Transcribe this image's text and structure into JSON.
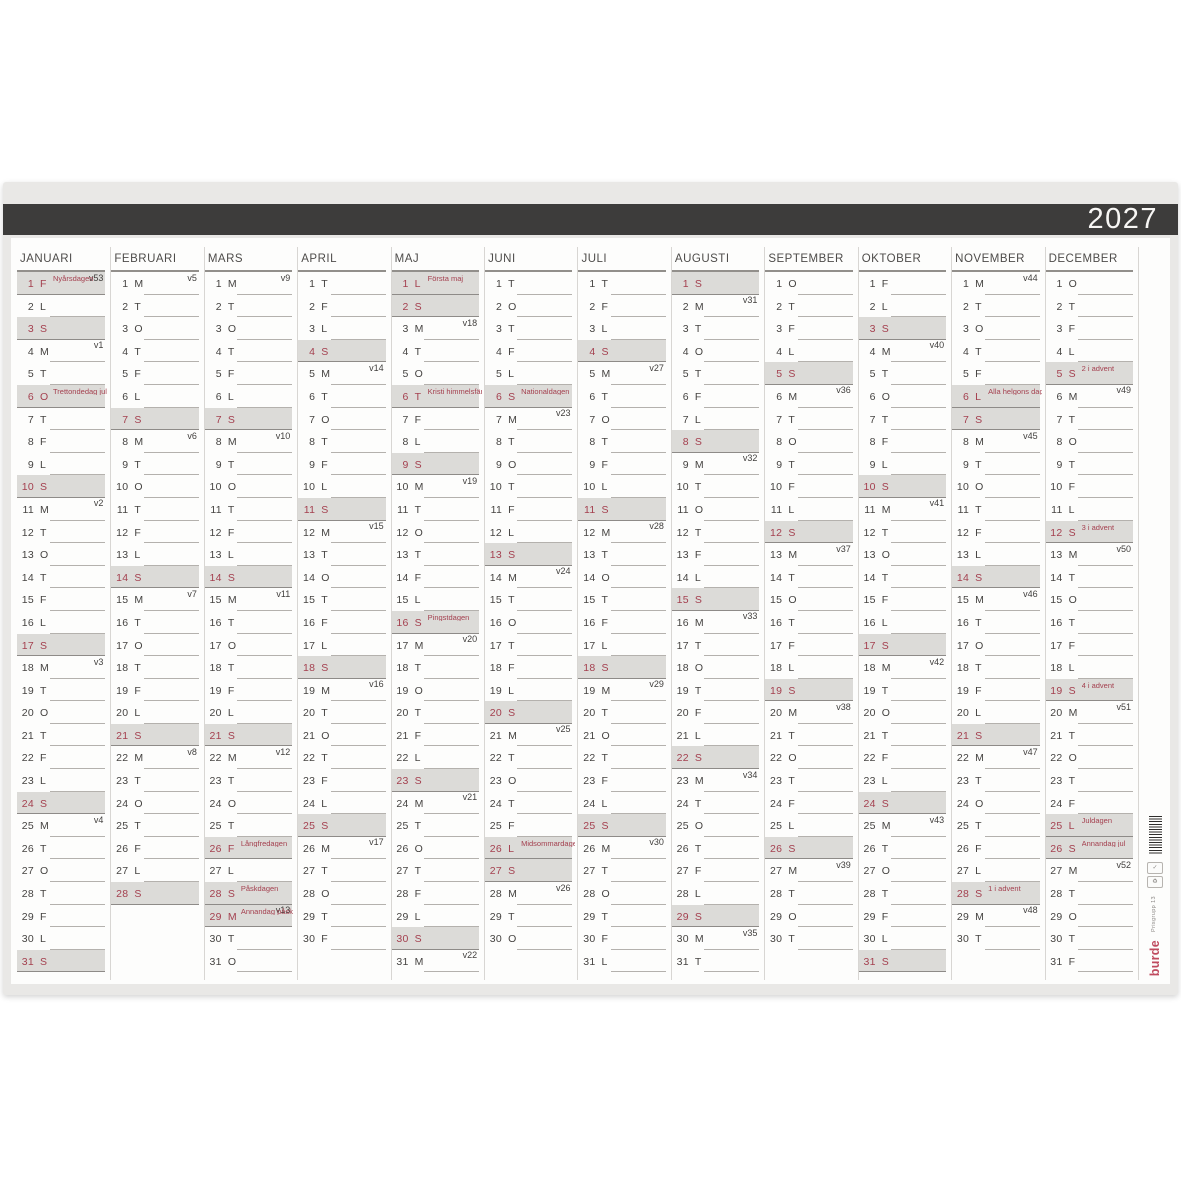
{
  "year": "2027",
  "brand": {
    "logo_text": "burde",
    "product_text": "Prisgrupp 13",
    "icons": [
      "barcode",
      "fsc-certification-mark",
      "recycling-mark"
    ]
  },
  "colors": {
    "title_band": "#3d3c3b",
    "holiday_red": "#a4404f",
    "highlight_gray": "#dcdbd8",
    "paper": "#fdfdfc",
    "sheet_edge": "#e9e8e6",
    "logo_red": "#bf4a5e"
  },
  "day_format": "date|weekday_letter|is_red_highlighted|week_number|holiday_name",
  "months": [
    {
      "name": "JANUARI",
      "days": [
        "1|F|1|v53|Nyårsdagen",
        "2|L",
        "3|S|1",
        "4|M|0|v1",
        "5|T",
        "6|O|1||Trettondedag jul",
        "7|T",
        "8|F",
        "9|L",
        "10|S|1",
        "11|M|0|v2",
        "12|T",
        "13|O",
        "14|T",
        "15|F",
        "16|L",
        "17|S|1",
        "18|M|0|v3",
        "19|T",
        "20|O",
        "21|T",
        "22|F",
        "23|L",
        "24|S|1",
        "25|M|0|v4",
        "26|T",
        "27|O",
        "28|T",
        "29|F",
        "30|L",
        "31|S|1"
      ]
    },
    {
      "name": "FEBRUARI",
      "days": [
        "1|M|0|v5",
        "2|T",
        "3|O",
        "4|T",
        "5|F",
        "6|L",
        "7|S|1",
        "8|M|0|v6",
        "9|T",
        "10|O",
        "11|T",
        "12|F",
        "13|L",
        "14|S|1",
        "15|M|0|v7",
        "16|T",
        "17|O",
        "18|T",
        "19|F",
        "20|L",
        "21|S|1",
        "22|M|0|v8",
        "23|T",
        "24|O",
        "25|T",
        "26|F",
        "27|L",
        "28|S|1"
      ]
    },
    {
      "name": "MARS",
      "days": [
        "1|M|0|v9",
        "2|T",
        "3|O",
        "4|T",
        "5|F",
        "6|L",
        "7|S|1",
        "8|M|0|v10",
        "9|T",
        "10|O",
        "11|T",
        "12|F",
        "13|L",
        "14|S|1",
        "15|M|0|v11",
        "16|T",
        "17|O",
        "18|T",
        "19|F",
        "20|L",
        "21|S|1",
        "22|M|0|v12",
        "23|T",
        "24|O",
        "25|T",
        "26|F|1||Långfredagen",
        "27|L",
        "28|S|1||Påskdagen",
        "29|M|1|v13|Annandag påsk",
        "30|T",
        "31|O"
      ]
    },
    {
      "name": "APRIL",
      "days": [
        "1|T",
        "2|F",
        "3|L",
        "4|S|1",
        "5|M|0|v14",
        "6|T",
        "7|O",
        "8|T",
        "9|F",
        "10|L",
        "11|S|1",
        "12|M|0|v15",
        "13|T",
        "14|O",
        "15|T",
        "16|F",
        "17|L",
        "18|S|1",
        "19|M|0|v16",
        "20|T",
        "21|O",
        "22|T",
        "23|F",
        "24|L",
        "25|S|1",
        "26|M|0|v17",
        "27|T",
        "28|O",
        "29|T",
        "30|F"
      ]
    },
    {
      "name": "MAJ",
      "days": [
        "1|L|1||Första maj",
        "2|S|1",
        "3|M|0|v18",
        "4|T",
        "5|O",
        "6|T|1||Kristi himmelsfärds d.",
        "7|F",
        "8|L",
        "9|S|1",
        "10|M|0|v19",
        "11|T",
        "12|O",
        "13|T",
        "14|F",
        "15|L",
        "16|S|1||Pingstdagen",
        "17|M|0|v20",
        "18|T",
        "19|O",
        "20|T",
        "21|F",
        "22|L",
        "23|S|1",
        "24|M|0|v21",
        "25|T",
        "26|O",
        "27|T",
        "28|F",
        "29|L",
        "30|S|1",
        "31|M|0|v22"
      ]
    },
    {
      "name": "JUNI",
      "days": [
        "1|T",
        "2|O",
        "3|T",
        "4|F",
        "5|L",
        "6|S|1||Nationaldagen",
        "7|M|0|v23",
        "8|T",
        "9|O",
        "10|T",
        "11|F",
        "12|L",
        "13|S|1",
        "14|M|0|v24",
        "15|T",
        "16|O",
        "17|T",
        "18|F",
        "19|L",
        "20|S|1",
        "21|M|0|v25",
        "22|T",
        "23|O",
        "24|T",
        "25|F",
        "26|L|1||Midsommardagen",
        "27|S|1",
        "28|M|0|v26",
        "29|T",
        "30|O"
      ]
    },
    {
      "name": "JULI",
      "days": [
        "1|T",
        "2|F",
        "3|L",
        "4|S|1",
        "5|M|0|v27",
        "6|T",
        "7|O",
        "8|T",
        "9|F",
        "10|L",
        "11|S|1",
        "12|M|0|v28",
        "13|T",
        "14|O",
        "15|T",
        "16|F",
        "17|L",
        "18|S|1",
        "19|M|0|v29",
        "20|T",
        "21|O",
        "22|T",
        "23|F",
        "24|L",
        "25|S|1",
        "26|M|0|v30",
        "27|T",
        "28|O",
        "29|T",
        "30|F",
        "31|L"
      ]
    },
    {
      "name": "AUGUSTI",
      "days": [
        "1|S|1",
        "2|M|0|v31",
        "3|T",
        "4|O",
        "5|T",
        "6|F",
        "7|L",
        "8|S|1",
        "9|M|0|v32",
        "10|T",
        "11|O",
        "12|T",
        "13|F",
        "14|L",
        "15|S|1",
        "16|M|0|v33",
        "17|T",
        "18|O",
        "19|T",
        "20|F",
        "21|L",
        "22|S|1",
        "23|M|0|v34",
        "24|T",
        "25|O",
        "26|T",
        "27|F",
        "28|L",
        "29|S|1",
        "30|M|0|v35",
        "31|T"
      ]
    },
    {
      "name": "SEPTEMBER",
      "days": [
        "1|O",
        "2|T",
        "3|F",
        "4|L",
        "5|S|1",
        "6|M|0|v36",
        "7|T",
        "8|O",
        "9|T",
        "10|F",
        "11|L",
        "12|S|1",
        "13|M|0|v37",
        "14|T",
        "15|O",
        "16|T",
        "17|F",
        "18|L",
        "19|S|1",
        "20|M|0|v38",
        "21|T",
        "22|O",
        "23|T",
        "24|F",
        "25|L",
        "26|S|1",
        "27|M|0|v39",
        "28|T",
        "29|O",
        "30|T"
      ]
    },
    {
      "name": "OKTOBER",
      "days": [
        "1|F",
        "2|L",
        "3|S|1",
        "4|M|0|v40",
        "5|T",
        "6|O",
        "7|T",
        "8|F",
        "9|L",
        "10|S|1",
        "11|M|0|v41",
        "12|T",
        "13|O",
        "14|T",
        "15|F",
        "16|L",
        "17|S|1",
        "18|M|0|v42",
        "19|T",
        "20|O",
        "21|T",
        "22|F",
        "23|L",
        "24|S|1",
        "25|M|0|v43",
        "26|T",
        "27|O",
        "28|T",
        "29|F",
        "30|L",
        "31|S|1"
      ]
    },
    {
      "name": "NOVEMBER",
      "days": [
        "1|M|0|v44",
        "2|T",
        "3|O",
        "4|T",
        "5|F",
        "6|L|1||Alla helgons dag",
        "7|S|1",
        "8|M|0|v45",
        "9|T",
        "10|O",
        "11|T",
        "12|F",
        "13|L",
        "14|S|1",
        "15|M|0|v46",
        "16|T",
        "17|O",
        "18|T",
        "19|F",
        "20|L",
        "21|S|1",
        "22|M|0|v47",
        "23|T",
        "24|O",
        "25|T",
        "26|F",
        "27|L",
        "28|S|1||1 i advent",
        "29|M|0|v48",
        "30|T"
      ]
    },
    {
      "name": "DECEMBER",
      "days": [
        "1|O",
        "2|T",
        "3|F",
        "4|L",
        "5|S|1||2 i advent",
        "6|M|0|v49",
        "7|T",
        "8|O",
        "9|T",
        "10|F",
        "11|L",
        "12|S|1||3 i advent",
        "13|M|0|v50",
        "14|T",
        "15|O",
        "16|T",
        "17|F",
        "18|L",
        "19|S|1||4 i advent",
        "20|M|0|v51",
        "21|T",
        "22|O",
        "23|T",
        "24|F",
        "25|L|1||Juldagen",
        "26|S|1||Annandag jul",
        "27|M|0|v52",
        "28|T",
        "29|O",
        "30|T",
        "31|F"
      ]
    }
  ]
}
